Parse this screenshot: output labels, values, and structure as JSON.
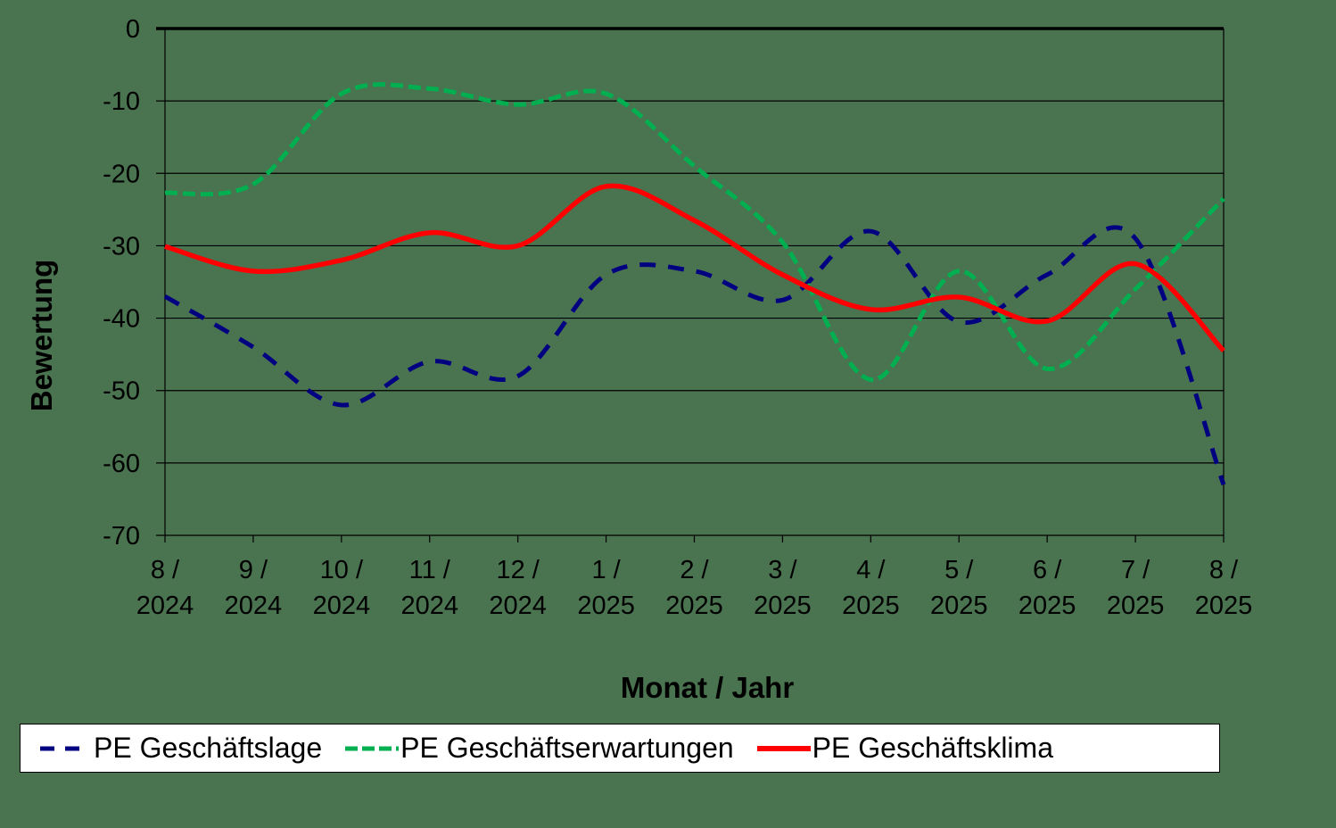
{
  "chart_data": {
    "type": "line",
    "title": "",
    "xlabel": "Monat / Jahr",
    "ylabel": "Bewertung",
    "ylim": [
      -70,
      0
    ],
    "yticks": [
      0,
      -10,
      -20,
      -30,
      -40,
      -50,
      -60,
      -70
    ],
    "grid": true,
    "legend_position": "bottom",
    "categories": [
      "8 / 2024",
      "9 / 2024",
      "10 / 2024",
      "11 / 2024",
      "12 / 2024",
      "1 / 2025",
      "2 / 2025",
      "3 / 2025",
      "4 / 2025",
      "5 / 2025",
      "6 / 2025",
      "7 / 2025",
      "8 / 2025"
    ],
    "category_lines": [
      [
        "8 /",
        "2024"
      ],
      [
        "9 /",
        "2024"
      ],
      [
        "10 /",
        "2024"
      ],
      [
        "11 /",
        "2024"
      ],
      [
        "12 /",
        "2024"
      ],
      [
        "1 /",
        "2025"
      ],
      [
        "2 /",
        "2025"
      ],
      [
        "3 /",
        "2025"
      ],
      [
        "4 /",
        "2025"
      ],
      [
        "5 /",
        "2025"
      ],
      [
        "6 /",
        "2025"
      ],
      [
        "7 /",
        "2025"
      ],
      [
        "8 /",
        "2025"
      ]
    ],
    "series": [
      {
        "name": "PE Geschäftslage",
        "color": "#000080",
        "style": "dashed",
        "values": [
          -37,
          -44,
          -52,
          -46,
          -48,
          -34,
          -33.5,
          -37.5,
          -28,
          -40.5,
          -34,
          -29,
          -63
        ]
      },
      {
        "name": "PE Geschäftserwartungen",
        "color": "#00b050",
        "style": "dotted",
        "values": [
          -22.7,
          -21.5,
          -9,
          -8.3,
          -10.5,
          -9,
          -19,
          -29.5,
          -48.5,
          -33.5,
          -47,
          -36,
          -23.5
        ]
      },
      {
        "name": "PE Geschäftsklima",
        "color": "#ff0000",
        "style": "solid",
        "values": [
          -30.1,
          -33.5,
          -32,
          -28.2,
          -30,
          -21.8,
          -26.5,
          -34,
          -38.8,
          -37.1,
          -40.4,
          -32.5,
          -44.5
        ]
      }
    ]
  },
  "legend": {
    "items": [
      "PE Geschäftslage",
      "PE Geschäftserwartungen",
      "PE Geschäftsklima"
    ]
  },
  "axes": {
    "x_title": "Monat / Jahr",
    "y_title": "Bewertung"
  }
}
